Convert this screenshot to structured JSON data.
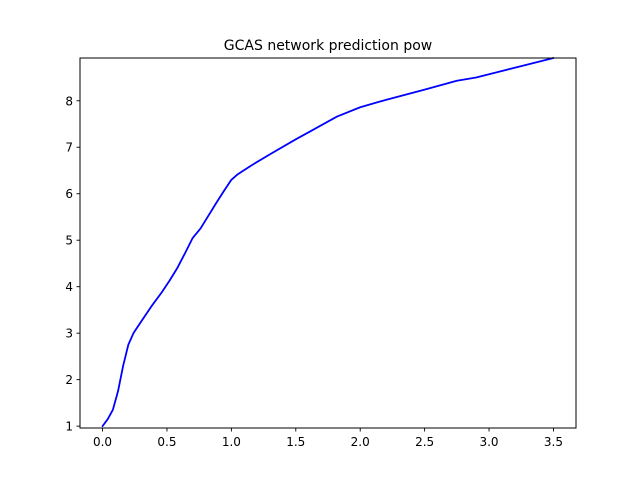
{
  "chart_data": {
    "type": "line",
    "title": "GCAS network prediction pow",
    "xlabel": "",
    "ylabel": "",
    "xlim": [
      -0.175,
      3.675
    ],
    "ylim": [
      0.96,
      8.92
    ],
    "xticks": [
      0.0,
      0.5,
      1.0,
      1.5,
      2.0,
      2.5,
      3.0,
      3.5
    ],
    "xtick_labels": [
      "0.0",
      "0.5",
      "1.0",
      "1.5",
      "2.0",
      "2.5",
      "3.0",
      "3.5"
    ],
    "yticks": [
      1,
      2,
      3,
      4,
      5,
      6,
      7,
      8
    ],
    "ytick_labels": [
      "1",
      "2",
      "3",
      "4",
      "5",
      "6",
      "7",
      "8"
    ],
    "grid": false,
    "legend": "none",
    "series": [
      {
        "color": "#0000ff",
        "x": [
          0.0,
          0.04,
          0.08,
          0.12,
          0.16,
          0.2,
          0.24,
          0.3,
          0.38,
          0.46,
          0.52,
          0.58,
          0.64,
          0.7,
          0.76,
          0.82,
          0.88,
          0.94,
          1.0,
          1.05,
          1.15,
          1.3,
          1.5,
          1.65,
          1.82,
          2.0,
          2.2,
          2.5,
          2.75,
          2.9,
          3.1,
          3.3,
          3.5
        ],
        "y": [
          1.0,
          1.15,
          1.35,
          1.75,
          2.3,
          2.75,
          3.0,
          3.25,
          3.58,
          3.88,
          4.13,
          4.4,
          4.72,
          5.05,
          5.25,
          5.52,
          5.79,
          6.05,
          6.3,
          6.42,
          6.6,
          6.85,
          7.17,
          7.4,
          7.66,
          7.86,
          8.02,
          8.24,
          8.43,
          8.5,
          8.64,
          8.78,
          8.92
        ]
      }
    ]
  }
}
